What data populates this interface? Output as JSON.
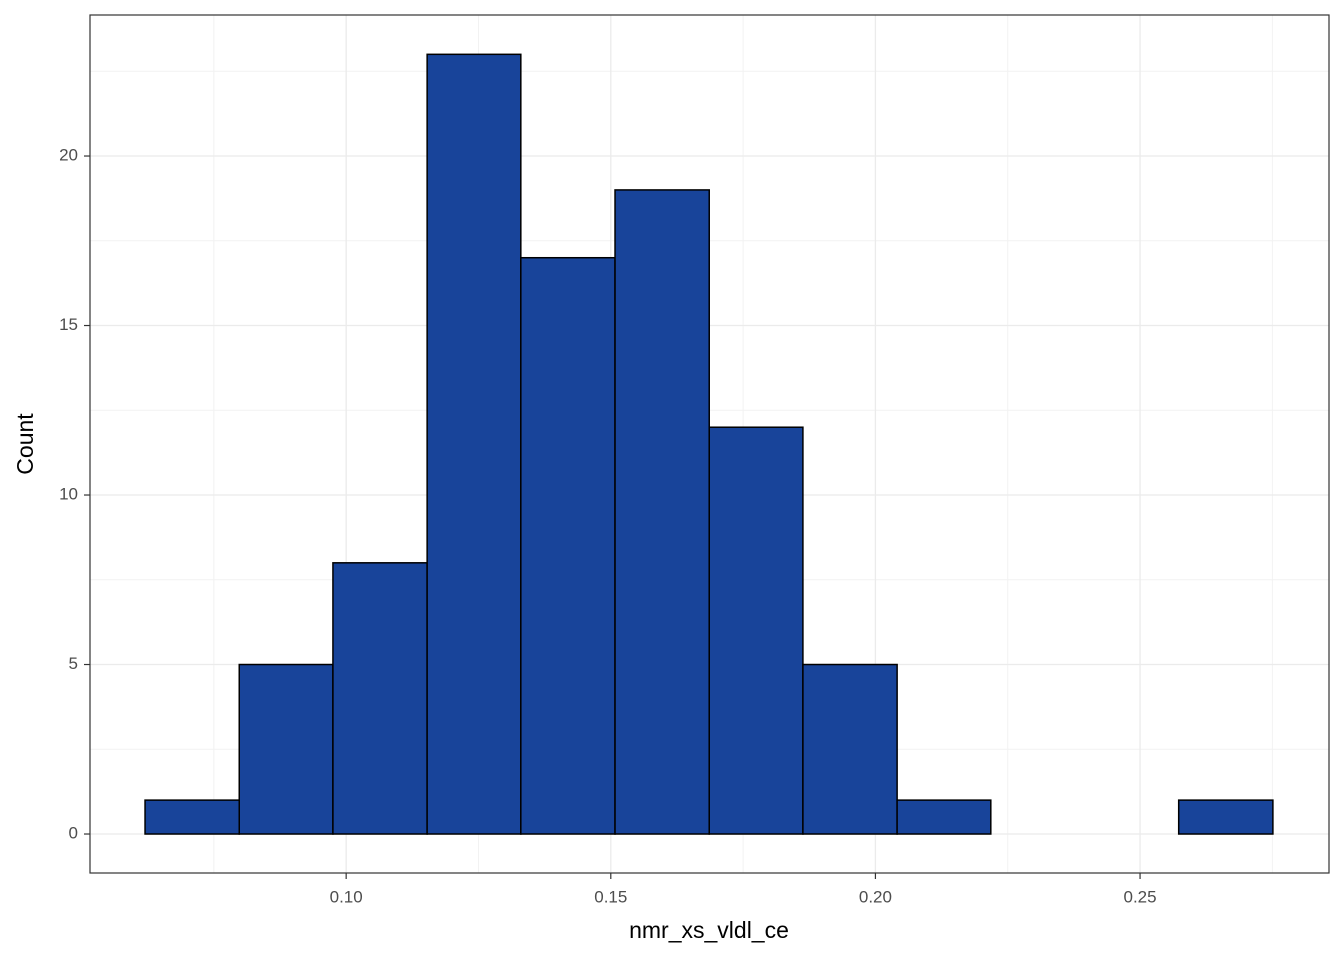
{
  "chart_data": {
    "type": "histogram",
    "x_label": "nmr_xs_vldl_ce",
    "y_label": "Count",
    "bins": [
      0.062,
      0.0798,
      0.0975,
      0.1153,
      0.133,
      0.1508,
      0.1686,
      0.1863,
      0.2041,
      0.2218,
      0.2396,
      0.2573,
      0.2751
    ],
    "values": [
      1,
      5,
      8,
      23,
      17,
      19,
      12,
      5,
      1,
      0,
      0,
      1
    ],
    "color": "#18449a",
    "edge_color": "#000000",
    "xlim": [
      0.0516,
      0.2857
    ],
    "ylim": [
      -1.15,
      24.16
    ],
    "xticks": [
      {
        "value": 0.1,
        "label": "0.10"
      },
      0.15,
      {
        "value": 0.2,
        "label": "0.20"
      },
      0.25
    ],
    "yticks": [
      0,
      5,
      10,
      15,
      20
    ],
    "minor_xticks": [
      0.075,
      0.125,
      0.175,
      0.225,
      0.275
    ],
    "minor_yticks": [
      2.5,
      7.5,
      12.5,
      17.5,
      22.5
    ],
    "grid": true
  }
}
